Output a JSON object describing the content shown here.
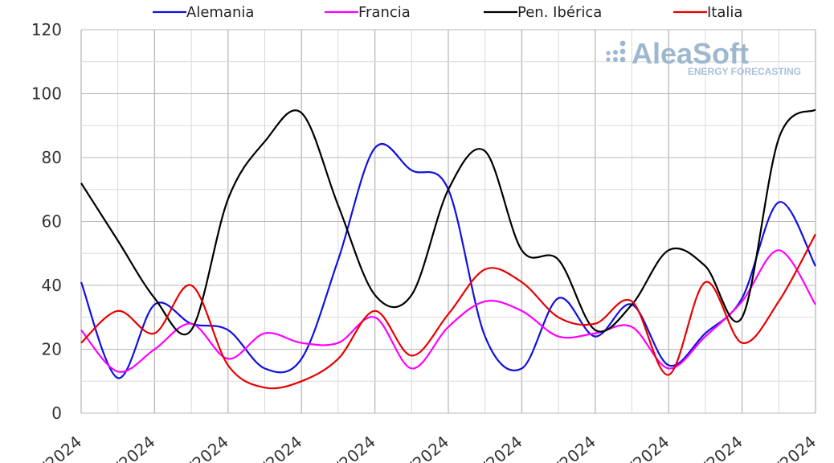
{
  "logo": {
    "name": "AleaSoft",
    "tagline": "ENERGY FORECASTING"
  },
  "chart_data": {
    "type": "line",
    "ylim": [
      0,
      120
    ],
    "yticks": [
      0,
      20,
      40,
      60,
      80,
      100,
      120
    ],
    "grid": true,
    "legend_position": "top",
    "xticks": [
      "/2024",
      "/2024",
      "/2024",
      "/2024",
      "/2024",
      "/2024",
      "/2024",
      "/2024",
      "/2024",
      "/2024",
      "/2024"
    ],
    "x": [
      0,
      1,
      2,
      3,
      4,
      5,
      6,
      7,
      8,
      9,
      10,
      11,
      12,
      13,
      14,
      15,
      16,
      17,
      18,
      19,
      20
    ],
    "series": [
      {
        "name": "Alemania",
        "color": "#1010e0",
        "values": [
          41,
          11,
          34,
          28,
          26,
          14,
          17,
          48,
          83,
          76,
          70,
          24,
          14,
          36,
          24,
          34,
          15,
          25,
          36,
          66,
          46
        ]
      },
      {
        "name": "Francia",
        "color": "#ff00ff",
        "values": [
          26,
          13,
          20,
          28,
          17,
          25,
          22,
          22,
          30,
          14,
          27,
          35,
          32,
          24,
          25,
          27,
          14,
          24,
          35,
          51,
          34
        ]
      },
      {
        "name": "Pen. Ibérica",
        "color": "#000000",
        "values": [
          72,
          54,
          36,
          26,
          67,
          85,
          94,
          65,
          37,
          37,
          70,
          82,
          51,
          48,
          26,
          34,
          51,
          46,
          30,
          86,
          95
        ]
      },
      {
        "name": "Italia",
        "color": "#e80000",
        "values": [
          22,
          32,
          25,
          40,
          15,
          8,
          10,
          17,
          32,
          18,
          31,
          45,
          41,
          30,
          28,
          35,
          12,
          41,
          22,
          35,
          56
        ]
      }
    ]
  }
}
